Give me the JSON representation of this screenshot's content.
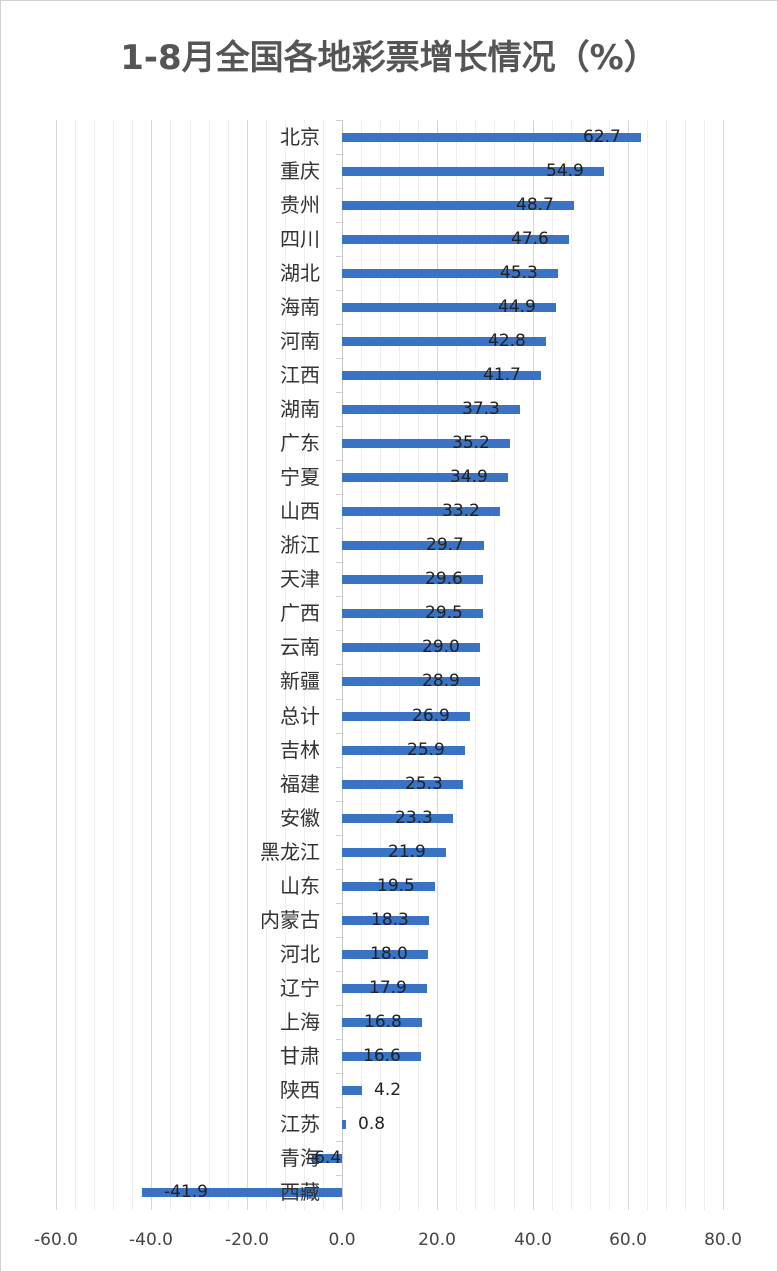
{
  "title": "1-8月全国各地彩票增长情况（%）",
  "colors": {
    "bar": "#3a72c4",
    "grid_major": "#d6d6d6",
    "grid_minor": "#eeeeee",
    "title": "#555555"
  },
  "chart_data": {
    "type": "bar",
    "orientation": "horizontal",
    "title": "1-8月全国各地彩票增长情况（%）",
    "xlabel": "",
    "ylabel": "",
    "xlim": [
      -60,
      80
    ],
    "x_ticks": [
      "-60.0",
      "-40.0",
      "-20.0",
      "0.0",
      "20.0",
      "40.0",
      "60.0",
      "80.0"
    ],
    "grid": true,
    "legend": "none",
    "categories": [
      "北京",
      "重庆",
      "贵州",
      "四川",
      "湖北",
      "海南",
      "河南",
      "江西",
      "湖南",
      "广东",
      "宁夏",
      "山西",
      "浙江",
      "天津",
      "广西",
      "云南",
      "新疆",
      "总计",
      "吉林",
      "福建",
      "安徽",
      "黑龙江",
      "山东",
      "内蒙古",
      "河北",
      "辽宁",
      "上海",
      "甘肃",
      "陕西",
      "江苏",
      "青海",
      "西藏"
    ],
    "values": [
      62.7,
      54.9,
      48.7,
      47.6,
      45.3,
      44.9,
      42.8,
      41.7,
      37.3,
      35.2,
      34.9,
      33.2,
      29.7,
      29.6,
      29.5,
      29.0,
      28.9,
      26.9,
      25.9,
      25.3,
      23.3,
      21.9,
      19.5,
      18.3,
      18.0,
      17.9,
      16.8,
      16.6,
      4.2,
      0.8,
      -6.4,
      -41.9
    ],
    "labels": [
      "62.7",
      "54.9",
      "48.7",
      "47.6",
      "45.3",
      "44.9",
      "42.8",
      "41.7",
      "37.3",
      "35.2",
      "34.9",
      "33.2",
      "29.7",
      "29.6",
      "29.5",
      "29.0",
      "28.9",
      "26.9",
      "25.9",
      "25.3",
      "23.3",
      "21.9",
      "19.5",
      "18.3",
      "18.0",
      "17.9",
      "16.8",
      "16.6",
      "4.2",
      "0.8",
      "-6.4",
      "-41.9"
    ]
  }
}
